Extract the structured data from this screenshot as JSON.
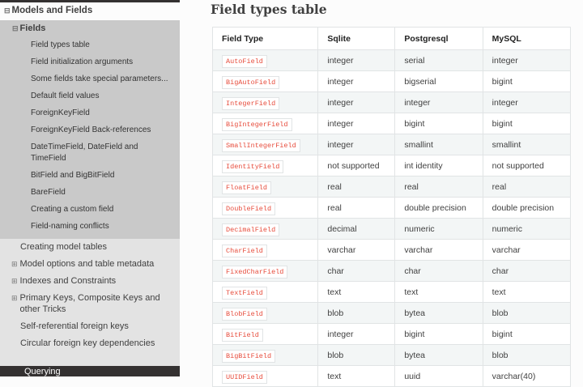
{
  "sidebar": {
    "section": "Models and Fields",
    "subsection": "Fields",
    "field_items": [
      "Field types table",
      "Field initialization arguments",
      "Some fields take special parameters...",
      "Default field values",
      "ForeignKeyField",
      "ForeignKeyField Back-references",
      "DateTimeField, DateField and TimeField",
      "BitField and BigBitField",
      "BareField",
      "Creating a custom field",
      "Field-naming conflicts"
    ],
    "other_items": [
      {
        "label": "Creating model tables",
        "expandable": false
      },
      {
        "label": "Model options and table metadata",
        "expandable": true
      },
      {
        "label": "Indexes and Constraints",
        "expandable": true
      },
      {
        "label": "Primary Keys, Composite Keys and other Tricks",
        "expandable": true
      },
      {
        "label": "Self-referential foreign keys",
        "expandable": false
      },
      {
        "label": "Circular foreign key dependencies",
        "expandable": false
      }
    ],
    "next_section": "Querying"
  },
  "main": {
    "title": "Field types table",
    "columns": [
      "Field Type",
      "Sqlite",
      "Postgresql",
      "MySQL"
    ],
    "rows": [
      [
        "AutoField",
        "integer",
        "serial",
        "integer"
      ],
      [
        "BigAutoField",
        "integer",
        "bigserial",
        "bigint"
      ],
      [
        "IntegerField",
        "integer",
        "integer",
        "integer"
      ],
      [
        "BigIntegerField",
        "integer",
        "bigint",
        "bigint"
      ],
      [
        "SmallIntegerField",
        "integer",
        "smallint",
        "smallint"
      ],
      [
        "IdentityField",
        "not supported",
        "int identity",
        "not supported"
      ],
      [
        "FloatField",
        "real",
        "real",
        "real"
      ],
      [
        "DoubleField",
        "real",
        "double precision",
        "double precision"
      ],
      [
        "DecimalField",
        "decimal",
        "numeric",
        "numeric"
      ],
      [
        "CharField",
        "varchar",
        "varchar",
        "varchar"
      ],
      [
        "FixedCharField",
        "char",
        "char",
        "char"
      ],
      [
        "TextField",
        "text",
        "text",
        "text"
      ],
      [
        "BlobField",
        "blob",
        "bytea",
        "blob"
      ],
      [
        "BitField",
        "integer",
        "bigint",
        "bigint"
      ],
      [
        "BigBitField",
        "blob",
        "bytea",
        "blob"
      ],
      [
        "UUIDField",
        "text",
        "uuid",
        "varchar(40)"
      ]
    ]
  },
  "icons": {
    "collapse": "⊟",
    "expand": "⊞"
  }
}
